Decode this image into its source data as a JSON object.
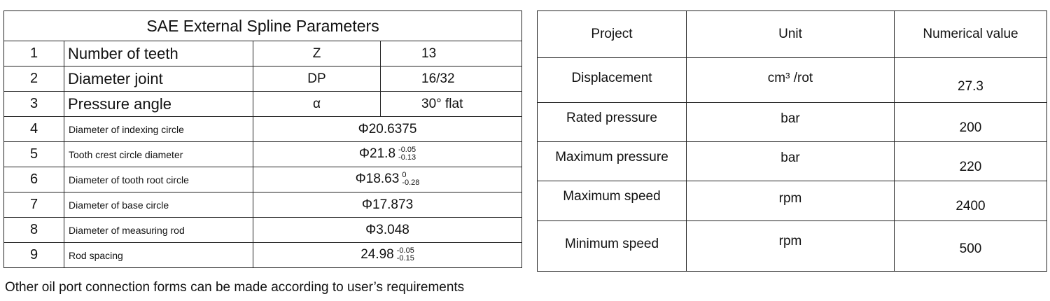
{
  "spline": {
    "title": "SAE External Spline Parameters",
    "rows": [
      {
        "no": "1",
        "name": "Number of teeth",
        "symbol": "Z",
        "value": "13"
      },
      {
        "no": "2",
        "name": "Diameter joint",
        "symbol": "DP",
        "value": "16/32"
      },
      {
        "no": "3",
        "name": "Pressure angle",
        "symbol": "α",
        "value": "30° flat"
      },
      {
        "no": "4",
        "name": "Diameter of indexing circle",
        "value": "Φ20.6375"
      },
      {
        "no": "5",
        "name": "Tooth crest circle diameter",
        "value": "Φ21.8",
        "tol_upper": "-0.05",
        "tol_lower": "-0.13"
      },
      {
        "no": "6",
        "name": "Diameter of tooth root circle",
        "value": "Φ18.63",
        "tol_upper": "0",
        "tol_lower": "-0.28"
      },
      {
        "no": "7",
        "name": "Diameter of base circle",
        "value": "Φ17.873"
      },
      {
        "no": "8",
        "name": "Diameter of measuring rod",
        "value": "Φ3.048"
      },
      {
        "no": "9",
        "name": "Rod spacing",
        "value": "24.98",
        "tol_upper": "-0.05",
        "tol_lower": "-0.15"
      }
    ]
  },
  "performance": {
    "headers": [
      "Project",
      "Unit",
      "Numerical value"
    ],
    "rows": [
      {
        "project": "Displacement",
        "unit": "cm³ /rot",
        "value": "27.3"
      },
      {
        "project": "Rated pressure",
        "unit": "bar",
        "value": "200"
      },
      {
        "project": "Maximum pressure",
        "unit": "bar",
        "value": "220"
      },
      {
        "project": "Maximum speed",
        "unit": "rpm",
        "value": "2400"
      },
      {
        "project": "Minimum speed",
        "unit": "rpm",
        "value": "500"
      }
    ]
  },
  "note": "Other oil port connection forms can be made according to user’s requirements"
}
